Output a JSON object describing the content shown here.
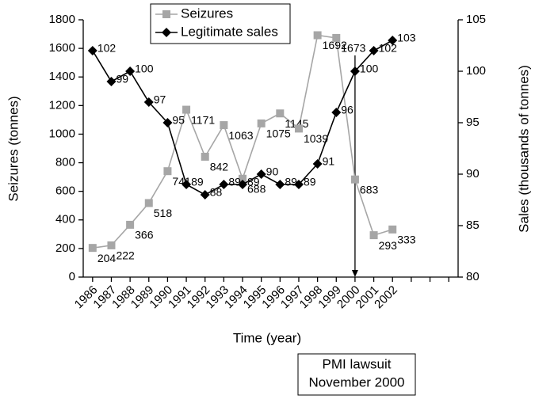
{
  "chart_data": {
    "type": "line",
    "y_label": "Seizures (tonnes)",
    "y2_label": "Sales (thousands of tonnes)",
    "x_label": "Time (year)",
    "categories": [
      "1986",
      "1987",
      "1988",
      "1989",
      "1990",
      "1991",
      "1992",
      "1993",
      "1994",
      "1995",
      "1996",
      "1997",
      "1998",
      "1999",
      "2000",
      "2001",
      "2002",
      null,
      null,
      null
    ],
    "series": [
      {
        "name": "Seizures",
        "color": "#a6a6a6",
        "marker": "square",
        "axis": "y",
        "values": [
          204,
          222,
          366,
          518,
          741,
          1171,
          842,
          1063,
          688,
          1075,
          1145,
          1039,
          1692,
          1673,
          683,
          293,
          333,
          null,
          null,
          null
        ]
      },
      {
        "name": "Legitimate sales",
        "color": "#000000",
        "marker": "diamond",
        "axis": "y2",
        "values": [
          102,
          99,
          100,
          97,
          95,
          89,
          88,
          89,
          89,
          90,
          89,
          89,
          91,
          96,
          100,
          102,
          103,
          null,
          null,
          null
        ]
      }
    ],
    "ylim": [
      0,
      1800
    ],
    "yticks": [
      0,
      200,
      400,
      600,
      800,
      1000,
      1200,
      1400,
      1600,
      1800
    ],
    "y2lim": [
      80,
      105
    ],
    "y2ticks": [
      80,
      85,
      90,
      95,
      100,
      105
    ],
    "legend_position": "upper center",
    "annotation": {
      "category": "2000",
      "lines": [
        "PMI lawsuit",
        "November 2000"
      ]
    }
  }
}
